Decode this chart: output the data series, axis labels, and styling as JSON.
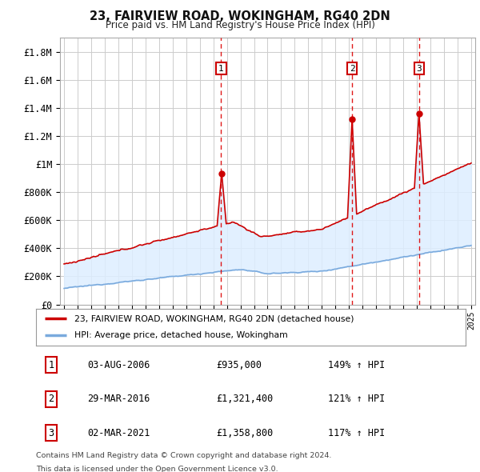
{
  "title": "23, FAIRVIEW ROAD, WOKINGHAM, RG40 2DN",
  "subtitle": "Price paid vs. HM Land Registry's House Price Index (HPI)",
  "red_label": "23, FAIRVIEW ROAD, WOKINGHAM, RG40 2DN (detached house)",
  "blue_label": "HPI: Average price, detached house, Wokingham",
  "footnote1": "Contains HM Land Registry data © Crown copyright and database right 2024.",
  "footnote2": "This data is licensed under the Open Government Licence v3.0.",
  "markers": [
    {
      "num": "1",
      "x_year": 2006.58,
      "price": 935000,
      "label": "03-AUG-2006",
      "amount": "£935,000",
      "pct": "149% ↑ HPI"
    },
    {
      "num": "2",
      "x_year": 2016.24,
      "price": 1321400,
      "label": "29-MAR-2016",
      "amount": "£1,321,400",
      "pct": "121% ↑ HPI"
    },
    {
      "num": "3",
      "x_year": 2021.17,
      "price": 1358800,
      "label": "02-MAR-2021",
      "amount": "£1,358,800",
      "pct": "117% ↑ HPI"
    }
  ],
  "yticks": [
    0,
    200000,
    400000,
    600000,
    800000,
    1000000,
    1200000,
    1400000,
    1600000,
    1800000
  ],
  "ytick_labels": [
    "£0",
    "£200K",
    "£400K",
    "£600K",
    "£800K",
    "£1M",
    "£1.2M",
    "£1.4M",
    "£1.6M",
    "£1.8M"
  ],
  "xlim": [
    1994.7,
    2025.3
  ],
  "ylim": [
    0,
    1900000
  ],
  "background_color": "#ffffff",
  "grid_color": "#cccccc",
  "red_color": "#cc0000",
  "blue_color": "#7aaadd",
  "fill_color": "#ddeeff"
}
